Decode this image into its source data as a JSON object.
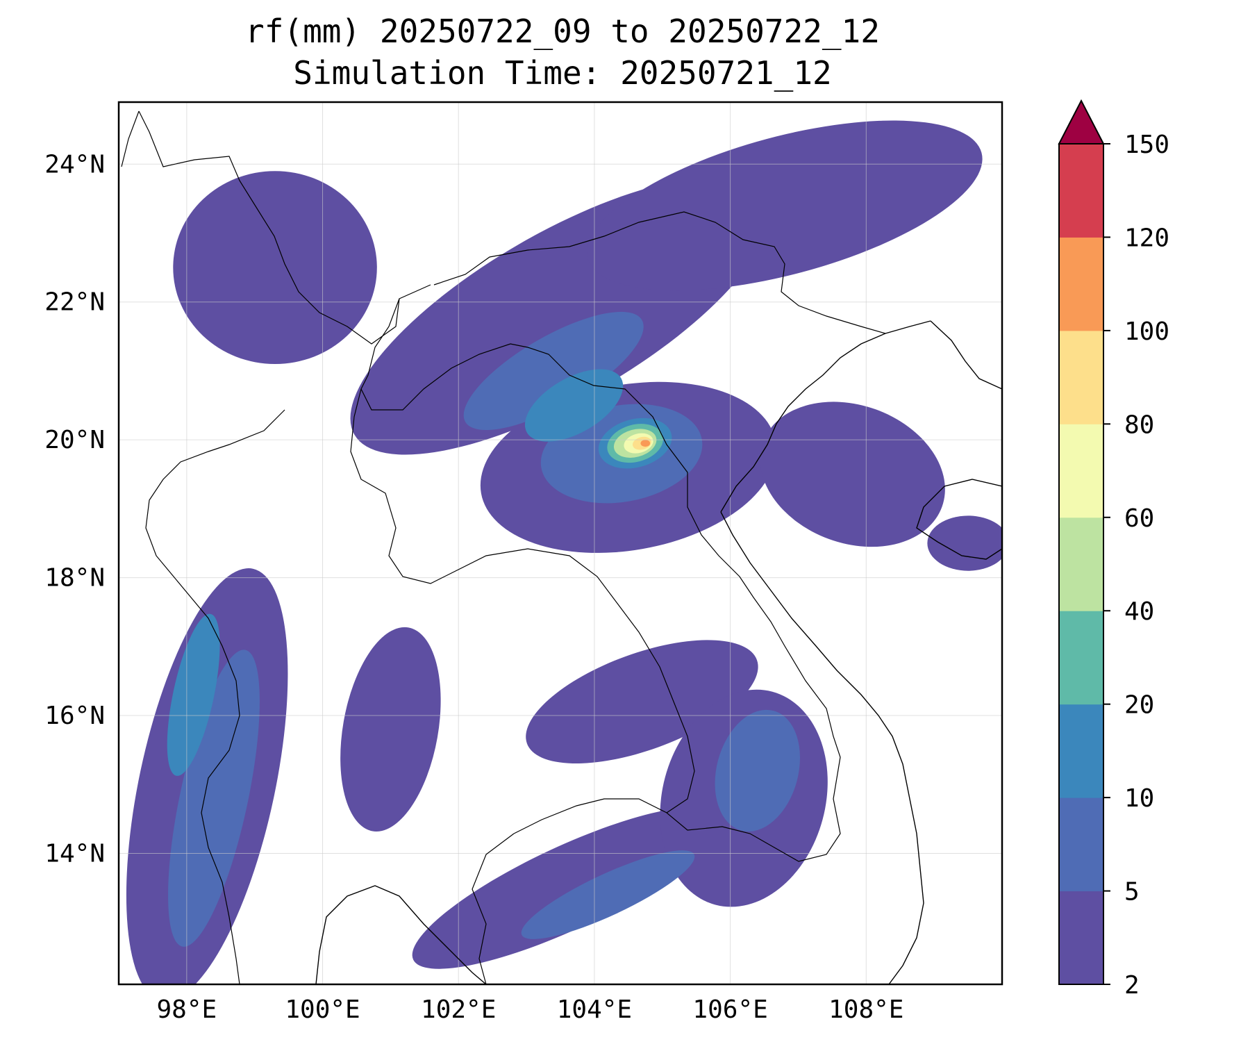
{
  "title": "rf(mm) 20250722_09 to 20250722_12",
  "subtitle": "Simulation Time: 20250721_12",
  "map": {
    "lon_range": [
      97.0,
      110.0
    ],
    "lat_range": [
      12.1,
      24.9
    ],
    "lon_ticks": [
      {
        "value": 98,
        "label": "98°E"
      },
      {
        "value": 100,
        "label": "100°E"
      },
      {
        "value": 102,
        "label": "102°E"
      },
      {
        "value": 104,
        "label": "104°E"
      },
      {
        "value": 106,
        "label": "106°E"
      },
      {
        "value": 108,
        "label": "108°E"
      }
    ],
    "lat_ticks": [
      {
        "value": 14,
        "label": "14°N"
      },
      {
        "value": 16,
        "label": "16°N"
      },
      {
        "value": 18,
        "label": "18°N"
      },
      {
        "value": 20,
        "label": "20°N"
      },
      {
        "value": 22,
        "label": "22°N"
      },
      {
        "value": 24,
        "label": "24°N"
      }
    ],
    "grid": true,
    "heavy_rain_center": {
      "lon": 104.6,
      "lat": 19.95
    },
    "rain_bands": [
      {
        "level": 0,
        "cx": 98.3,
        "cy": 15.0,
        "rx": 1.0,
        "ry": 3.2,
        "rot": 12
      },
      {
        "level": 0,
        "cx": 103.5,
        "cy": 21.8,
        "rx": 3.5,
        "ry": 1.2,
        "rot": -30
      },
      {
        "level": 0,
        "cx": 106.8,
        "cy": 23.4,
        "rx": 3.0,
        "ry": 1.0,
        "rot": -15
      },
      {
        "level": 0,
        "cx": 104.5,
        "cy": 19.6,
        "rx": 2.2,
        "ry": 1.2,
        "rot": -10
      },
      {
        "level": 0,
        "cx": 107.8,
        "cy": 19.5,
        "rx": 1.4,
        "ry": 1.0,
        "rot": 20
      },
      {
        "level": 0,
        "cx": 104.7,
        "cy": 16.2,
        "rx": 1.8,
        "ry": 0.7,
        "rot": -20
      },
      {
        "level": 0,
        "cx": 103.6,
        "cy": 13.5,
        "rx": 2.5,
        "ry": 0.6,
        "rot": -25
      },
      {
        "level": 0,
        "cx": 106.2,
        "cy": 14.8,
        "rx": 1.2,
        "ry": 1.6,
        "rot": 15
      },
      {
        "level": 0,
        "cx": 101.0,
        "cy": 15.8,
        "rx": 0.7,
        "ry": 1.5,
        "rot": 10
      },
      {
        "level": 0,
        "cx": 99.3,
        "cy": 22.5,
        "rx": 1.5,
        "ry": 1.4,
        "rot": 0
      },
      {
        "level": 0,
        "cx": 109.5,
        "cy": 18.5,
        "rx": 0.6,
        "ry": 0.4,
        "rot": 0
      },
      {
        "level": 1,
        "cx": 98.4,
        "cy": 14.8,
        "rx": 0.5,
        "ry": 2.2,
        "rot": 12
      },
      {
        "level": 1,
        "cx": 104.4,
        "cy": 19.8,
        "rx": 1.2,
        "ry": 0.7,
        "rot": -10
      },
      {
        "level": 1,
        "cx": 103.4,
        "cy": 21.0,
        "rx": 1.5,
        "ry": 0.5,
        "rot": -30
      },
      {
        "level": 1,
        "cx": 106.4,
        "cy": 15.2,
        "rx": 0.6,
        "ry": 0.9,
        "rot": 15
      },
      {
        "level": 1,
        "cx": 104.2,
        "cy": 13.4,
        "rx": 1.4,
        "ry": 0.3,
        "rot": -25
      },
      {
        "level": 2,
        "cx": 98.1,
        "cy": 16.3,
        "rx": 0.3,
        "ry": 1.2,
        "rot": 12
      },
      {
        "level": 2,
        "cx": 103.7,
        "cy": 20.5,
        "rx": 0.8,
        "ry": 0.4,
        "rot": -30
      },
      {
        "level": 2,
        "cx": 104.6,
        "cy": 19.95,
        "rx": 0.55,
        "ry": 0.35,
        "rot": -15
      },
      {
        "level": 3,
        "cx": 104.6,
        "cy": 19.95,
        "rx": 0.42,
        "ry": 0.27,
        "rot": -15
      },
      {
        "level": 4,
        "cx": 104.6,
        "cy": 19.95,
        "rx": 0.32,
        "ry": 0.2,
        "rot": -15
      },
      {
        "level": 5,
        "cx": 104.65,
        "cy": 19.95,
        "rx": 0.22,
        "ry": 0.14,
        "rot": -15
      },
      {
        "level": 6,
        "cx": 104.7,
        "cy": 19.95,
        "rx": 0.14,
        "ry": 0.09,
        "rot": -15
      },
      {
        "level": 7,
        "cx": 104.75,
        "cy": 19.95,
        "rx": 0.07,
        "ry": 0.05,
        "rot": 0
      }
    ]
  },
  "colorbar": {
    "levels": [
      2,
      5,
      10,
      20,
      40,
      60,
      80,
      100,
      120,
      150
    ],
    "labels": [
      "2",
      "5",
      "10",
      "20",
      "40",
      "60",
      "80",
      "100",
      "120",
      "150"
    ],
    "colors": [
      "#5e4fa2",
      "#4f6cb5",
      "#3b87bc",
      "#5fbaa8",
      "#bde3a1",
      "#f3fab0",
      "#fddf8b",
      "#f99a56",
      "#d53e4f"
    ],
    "extend_color": "#9e0142",
    "extend": "max"
  }
}
